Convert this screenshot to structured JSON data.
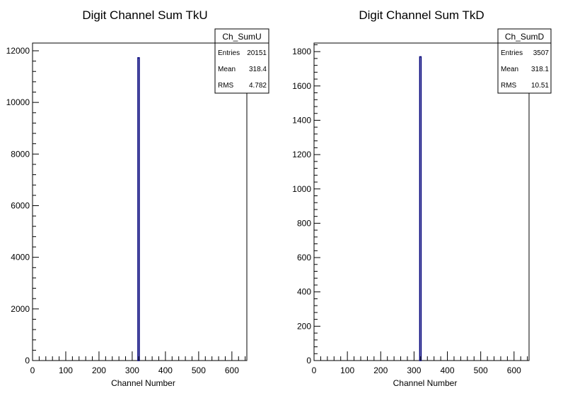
{
  "colors": {
    "histogram": "#00007a",
    "axis": "#000000",
    "background": "#ffffff"
  },
  "chart_data": [
    {
      "type": "bar",
      "title": "Digit Channel Sum TkU",
      "xlabel": "Channel Number",
      "ylabel": "",
      "xlim": [
        0,
        645
      ],
      "ylim": [
        0,
        12300
      ],
      "x_ticks": [
        "0",
        "100",
        "200",
        "300",
        "400",
        "500",
        "600"
      ],
      "y_ticks": [
        "0",
        "2000",
        "4000",
        "6000",
        "8000",
        "10000",
        "12000"
      ],
      "x": [
        318
      ],
      "values": [
        11730
      ],
      "bin_width": 2,
      "grid": false,
      "stats": {
        "name": "Ch_SumU",
        "rows": [
          {
            "label": "Entries",
            "value": "20151"
          },
          {
            "label": "Mean",
            "value": "318.4"
          },
          {
            "label": "RMS",
            "value": "4.782"
          }
        ]
      }
    },
    {
      "type": "bar",
      "title": "Digit Channel Sum TkD",
      "xlabel": "Channel Number",
      "ylabel": "",
      "xlim": [
        0,
        645
      ],
      "ylim": [
        0,
        1850
      ],
      "x_ticks": [
        "0",
        "100",
        "200",
        "300",
        "400",
        "500",
        "600"
      ],
      "y_ticks": [
        "0",
        "200",
        "400",
        "600",
        "800",
        "1000",
        "1200",
        "1400",
        "1600",
        "1800"
      ],
      "x": [
        318
      ],
      "values": [
        1770
      ],
      "bin_width": 2,
      "grid": false,
      "stats": {
        "name": "Ch_SumD",
        "rows": [
          {
            "label": "Entries",
            "value": "3507"
          },
          {
            "label": "Mean",
            "value": "318.1"
          },
          {
            "label": "RMS",
            "value": "10.51"
          }
        ]
      }
    }
  ]
}
